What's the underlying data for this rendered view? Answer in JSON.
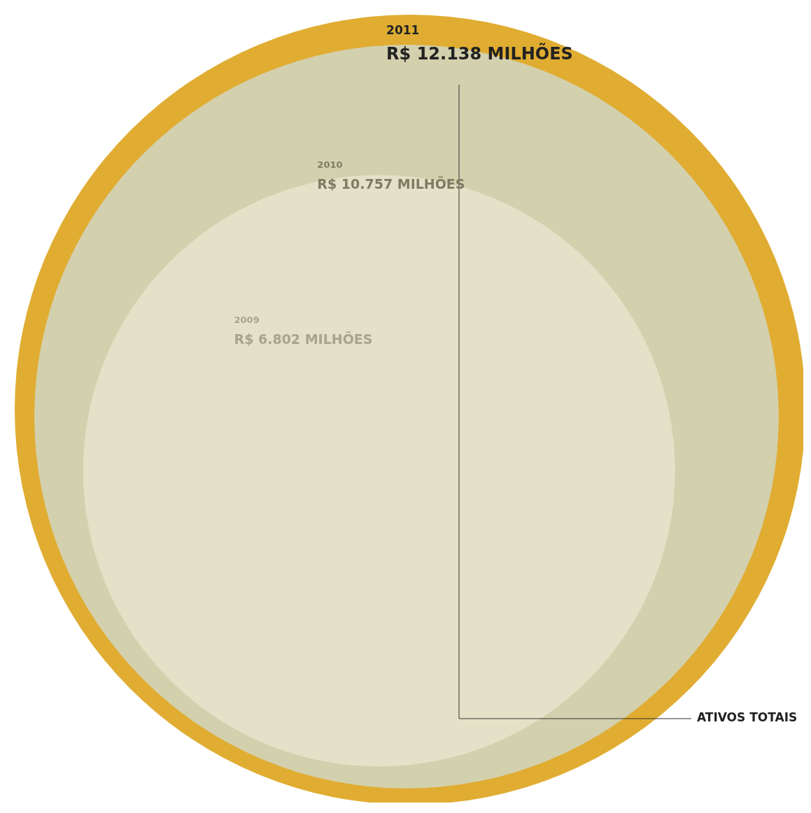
{
  "chart_data": {
    "type": "other",
    "title": "ATIVOS TOTAIS",
    "categories": [
      "2011",
      "2010",
      "2009"
    ],
    "values": [
      12138,
      10757,
      6802
    ],
    "value_labels": [
      "R$ 12.138 MILHÕES",
      "R$ 10.757 MILHÕES",
      "R$ 6.802 MILHÕES"
    ],
    "colors": [
      "#e0ad32",
      "#d3d0ae",
      "#e4e1c8"
    ]
  }
}
